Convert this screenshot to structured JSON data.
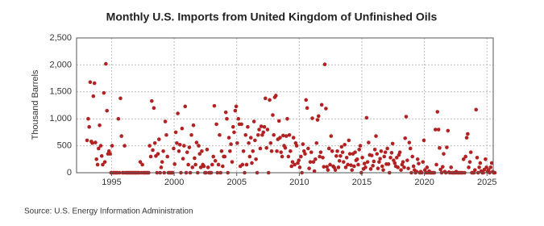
{
  "chart_data": {
    "type": "scatter",
    "title": "Monthly U.S. Imports from United Kingdom of Unfinished Oils",
    "y_label": "Thousand Barrels",
    "source": "Source: U.S. Energy Information Administration",
    "color": "#b22222",
    "grid": true,
    "xlim": [
      1992.2,
      2025.5
    ],
    "xticks": [
      1995,
      2000,
      2005,
      2010,
      2015,
      2020,
      2025
    ],
    "ylim": [
      0,
      2500
    ],
    "yticks": [
      0,
      500,
      {
        "value": 1000,
        "label": "1,000"
      },
      {
        "value": 1500,
        "label": "1,500"
      },
      {
        "value": 2000,
        "label": "2,000"
      },
      {
        "value": 2500,
        "label": "2,500"
      }
    ],
    "x": [
      1993.04,
      1993.13,
      1993.21,
      1993.29,
      1993.38,
      1993.46,
      1993.54,
      1993.63,
      1993.71,
      1993.79,
      1993.88,
      1993.96,
      1994.04,
      1994.13,
      1994.21,
      1994.29,
      1994.38,
      1994.46,
      1994.54,
      1994.63,
      1994.71,
      1994.79,
      1994.88,
      1994.96,
      1995.04,
      1995.13,
      1995.21,
      1995.29,
      1995.38,
      1995.46,
      1995.54,
      1995.63,
      1995.71,
      1995.79,
      1995.88,
      1995.96,
      1996.04,
      1996.13,
      1996.21,
      1996.29,
      1996.38,
      1996.46,
      1996.54,
      1996.63,
      1996.71,
      1996.79,
      1996.88,
      1996.96,
      1997.04,
      1997.13,
      1997.21,
      1997.29,
      1997.38,
      1997.46,
      1997.54,
      1997.63,
      1997.71,
      1997.79,
      1997.88,
      1997.96,
      1998.04,
      1998.13,
      1998.21,
      1998.29,
      1998.38,
      1998.46,
      1998.54,
      1998.63,
      1998.71,
      1998.79,
      1998.88,
      1998.96,
      1999.04,
      1999.13,
      1999.21,
      1999.29,
      1999.38,
      1999.46,
      1999.54,
      1999.63,
      1999.71,
      1999.79,
      1999.88,
      1999.96,
      2000.04,
      2000.13,
      2000.21,
      2000.29,
      2000.38,
      2000.46,
      2000.54,
      2000.63,
      2000.71,
      2000.79,
      2000.88,
      2000.96,
      2001.04,
      2001.13,
      2001.21,
      2001.29,
      2001.38,
      2001.46,
      2001.54,
      2001.63,
      2001.71,
      2001.79,
      2001.88,
      2001.96,
      2002.04,
      2002.13,
      2002.21,
      2002.29,
      2002.38,
      2002.46,
      2002.54,
      2002.63,
      2002.71,
      2002.79,
      2002.88,
      2002.96,
      2003.04,
      2003.13,
      2003.21,
      2003.29,
      2003.38,
      2003.46,
      2003.54,
      2003.63,
      2003.71,
      2003.79,
      2003.88,
      2003.96,
      2004.04,
      2004.13,
      2004.21,
      2004.29,
      2004.38,
      2004.46,
      2004.54,
      2004.63,
      2004.71,
      2004.79,
      2004.88,
      2004.96,
      2005.04,
      2005.13,
      2005.21,
      2005.29,
      2005.38,
      2005.46,
      2005.54,
      2005.63,
      2005.71,
      2005.79,
      2005.88,
      2005.96,
      2006.04,
      2006.13,
      2006.21,
      2006.29,
      2006.38,
      2006.46,
      2006.54,
      2006.63,
      2006.71,
      2006.79,
      2006.88,
      2006.96,
      2007.04,
      2007.13,
      2007.21,
      2007.29,
      2007.38,
      2007.46,
      2007.54,
      2007.63,
      2007.71,
      2007.79,
      2007.88,
      2007.96,
      2008.04,
      2008.13,
      2008.21,
      2008.29,
      2008.38,
      2008.46,
      2008.54,
      2008.63,
      2008.71,
      2008.79,
      2008.88,
      2008.96,
      2009.04,
      2009.13,
      2009.21,
      2009.29,
      2009.38,
      2009.46,
      2009.54,
      2009.63,
      2009.71,
      2009.79,
      2009.88,
      2009.96,
      2010.04,
      2010.13,
      2010.21,
      2010.29,
      2010.38,
      2010.46,
      2010.54,
      2010.63,
      2010.71,
      2010.79,
      2010.88,
      2010.96,
      2011.04,
      2011.13,
      2011.21,
      2011.29,
      2011.38,
      2011.46,
      2011.54,
      2011.63,
      2011.71,
      2011.79,
      2011.88,
      2011.96,
      2012.04,
      2012.13,
      2012.21,
      2012.29,
      2012.38,
      2012.46,
      2012.54,
      2012.63,
      2012.71,
      2012.79,
      2012.88,
      2012.96,
      2013.04,
      2013.13,
      2013.21,
      2013.29,
      2013.38,
      2013.46,
      2013.54,
      2013.63,
      2013.71,
      2013.79,
      2013.88,
      2013.96,
      2014.04,
      2014.13,
      2014.21,
      2014.29,
      2014.38,
      2014.46,
      2014.54,
      2014.63,
      2014.71,
      2014.79,
      2014.88,
      2014.96,
      2015.04,
      2015.13,
      2015.21,
      2015.29,
      2015.38,
      2015.46,
      2015.54,
      2015.63,
      2015.71,
      2015.79,
      2015.88,
      2015.96,
      2016.04,
      2016.13,
      2016.21,
      2016.29,
      2016.38,
      2016.46,
      2016.54,
      2016.63,
      2016.71,
      2016.79,
      2016.88,
      2016.96,
      2017.04,
      2017.13,
      2017.21,
      2017.29,
      2017.38,
      2017.46,
      2017.54,
      2017.63,
      2017.71,
      2017.79,
      2017.88,
      2017.96,
      2018.04,
      2018.13,
      2018.21,
      2018.29,
      2018.38,
      2018.46,
      2018.54,
      2018.63,
      2018.71,
      2018.79,
      2018.88,
      2018.96,
      2019.04,
      2019.13,
      2019.21,
      2019.29,
      2019.38,
      2019.46,
      2019.54,
      2019.63,
      2019.71,
      2019.79,
      2019.88,
      2019.96,
      2020.04,
      2020.13,
      2020.21,
      2020.29,
      2020.38,
      2020.46,
      2020.54,
      2020.63,
      2020.71,
      2020.79,
      2020.88,
      2020.96,
      2021.04,
      2021.13,
      2021.21,
      2021.29,
      2021.38,
      2021.46,
      2021.54,
      2021.63,
      2021.71,
      2021.79,
      2021.88,
      2021.96,
      2022.04,
      2022.13,
      2022.21,
      2022.29,
      2022.38,
      2022.46,
      2022.54,
      2022.63,
      2022.71,
      2022.79,
      2022.88,
      2022.96,
      2023.04,
      2023.13,
      2023.21,
      2023.29,
      2023.38,
      2023.46,
      2023.54,
      2023.63,
      2023.71,
      2023.79,
      2023.88,
      2023.96,
      2024.04,
      2024.13,
      2024.21,
      2024.29,
      2024.38,
      2024.46,
      2024.54,
      2024.63,
      2024.71,
      2024.79,
      2024.88,
      2024.96,
      2025.04,
      2025.13,
      2025.21,
      2025.29,
      2025.38,
      2025.46,
      2025.54,
      2025.63
    ],
    "values": [
      600,
      1000,
      850,
      1680,
      580,
      550,
      1420,
      1660,
      560,
      250,
      150,
      450,
      880,
      500,
      310,
      150,
      1480,
      200,
      2020,
      1150,
      350,
      400,
      350,
      0,
      500,
      0,
      0,
      0,
      0,
      0,
      1000,
      0,
      1380,
      680,
      0,
      0,
      500,
      0,
      0,
      0,
      0,
      0,
      0,
      0,
      0,
      0,
      0,
      0,
      0,
      0,
      0,
      200,
      0,
      150,
      0,
      0,
      0,
      0,
      0,
      0,
      500,
      300,
      1330,
      420,
      1200,
      550,
      310,
      0,
      350,
      620,
      0,
      100,
      200,
      400,
      0,
      950,
      700,
      300,
      0,
      0,
      0,
      0,
      0,
      450,
      160,
      750,
      550,
      1100,
      400,
      520,
      0,
      820,
      260,
      500,
      1230,
      0,
      380,
      150,
      470,
      0,
      700,
      100,
      880,
      270,
      150,
      560,
      0,
      500,
      350,
      100,
      400,
      150,
      120,
      0,
      0,
      430,
      100,
      0,
      0,
      0,
      150,
      300,
      1240,
      220,
      900,
      0,
      150,
      700,
      0,
      400,
      120,
      300,
      300,
      1120,
      1000,
      0,
      650,
      400,
      530,
      200,
      850,
      750,
      1150,
      1230,
      550,
      1000,
      900,
      120,
      900,
      150,
      400,
      0,
      700,
      150,
      850,
      550,
      300,
      650,
      180,
      400,
      950,
      600,
      250,
      0,
      700,
      800,
      450,
      860,
      700,
      750,
      850,
      1380,
      460,
      800,
      0,
      1350,
      550,
      400,
      1070,
      700,
      1400,
      1430,
      400,
      620,
      960,
      650,
      380,
      300,
      690,
      500,
      460,
      680,
      1000,
      300,
      700,
      400,
      120,
      200,
      650,
      150,
      550,
      500,
      180,
      230,
      100,
      300,
      0,
      530,
      400,
      350,
      1350,
      1200,
      450,
      80,
      200,
      380,
      1010,
      200,
      30,
      250,
      550,
      980,
      1050,
      300,
      380,
      1260,
      280,
      110,
      2010,
      1190,
      110,
      50,
      450,
      150,
      680,
      400,
      120,
      100,
      50,
      310,
      400,
      100,
      220,
      310,
      480,
      380,
      200,
      520,
      100,
      280,
      150,
      600,
      350,
      140,
      50,
      350,
      120,
      380,
      230,
      250,
      150,
      430,
      500,
      0,
      280,
      70,
      170,
      100,
      1020,
      200,
      560,
      330,
      70,
      320,
      130,
      210,
      430,
      680,
      350,
      80,
      200,
      260,
      400,
      120,
      50,
      300,
      380,
      160,
      450,
      160,
      0,
      280,
      370,
      540,
      230,
      180,
      120,
      280,
      100,
      330,
      380,
      50,
      150,
      200,
      100,
      640,
      1040,
      230,
      80,
      560,
      450,
      0,
      300,
      120,
      50,
      0,
      20,
      250,
      170,
      0,
      20,
      0,
      200,
      600,
      50,
      0,
      100,
      0,
      30,
      0,
      0,
      0,
      0,
      0,
      800,
      150,
      1130,
      800,
      460,
      60,
      0,
      110,
      350,
      20,
      0,
      470,
      780,
      10,
      0,
      100,
      0,
      0,
      0,
      0,
      20,
      0,
      0,
      0,
      0,
      0,
      0,
      250,
      0,
      300,
      650,
      720,
      100,
      200,
      380,
      0,
      0,
      0,
      50,
      1170,
      280,
      0,
      100,
      180,
      30,
      0,
      0,
      60,
      250,
      100,
      20,
      50,
      0,
      100,
      180,
      20,
      0,
      0
    ]
  }
}
